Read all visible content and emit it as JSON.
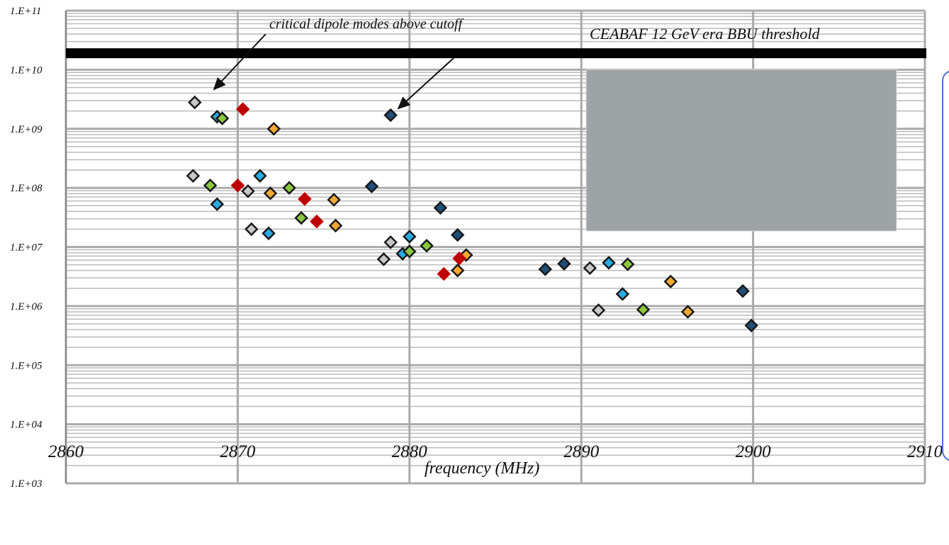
{
  "chart_data": {
    "type": "scatter",
    "xlabel": "frequency (MHz)",
    "annotations": [
      "critical dipole modes above cutoff",
      "CEABAF 12 GeV era BBU threshold"
    ],
    "threshold": 19000000000.0,
    "xlim": [
      2860,
      2910
    ],
    "xticks": [
      2860,
      2870,
      2880,
      2890,
      2900,
      2910
    ],
    "ylim": [
      1000.0,
      100000000000.0
    ],
    "log_y": true,
    "grid": true,
    "yticks": [
      {
        "value": 1000.0,
        "label": "1.E+03"
      },
      {
        "value": 10000.0,
        "label": "1.E+04"
      },
      {
        "value": 100000.0,
        "label": "1.E+05"
      },
      {
        "value": 1000000.0,
        "label": "1.E+06"
      },
      {
        "value": 10000000.0,
        "label": "1.E+07"
      },
      {
        "value": 100000000.0,
        "label": "1.E+08"
      },
      {
        "value": 1000000000.0,
        "label": "1.E+09"
      },
      {
        "value": 10000000000.0,
        "label": "1.E+10"
      },
      {
        "value": 100000000000.0,
        "label": "1.E+11"
      }
    ],
    "series": [
      {
        "color": "#c8c8c8",
        "edgecolor": "#1a1a1a",
        "x": [
          2867.5,
          2867.4,
          2870.6,
          2870.8,
          2878.9,
          2878.5,
          2890.5,
          2891.0
        ],
        "values": [
          2800000000.0,
          160000000.0,
          88000000.0,
          20000000.0,
          12000000.0,
          6200000.0,
          4400000.0,
          850000.0
        ]
      },
      {
        "color": "#29abe2",
        "edgecolor": "#1a1a1a",
        "x": [
          2868.8,
          2868.8,
          2871.3,
          2871.8,
          2880.0,
          2879.6,
          2891.6,
          2892.4
        ],
        "values": [
          1600000000.0,
          53000000.0,
          160000000.0,
          17000000.0,
          15000000.0,
          7700000.0,
          5400000.0,
          1600000.0
        ]
      },
      {
        "color": "#8cc63f",
        "edgecolor": "#1a1a1a",
        "x": [
          2869.1,
          2868.4,
          2873.0,
          2873.7,
          2880.0,
          2881.0,
          2892.7,
          2893.6
        ],
        "values": [
          1500000000.0,
          110000000.0,
          100000000.0,
          31000000.0,
          8400000.0,
          10500000.0,
          5100000.0,
          870000.0
        ]
      },
      {
        "color": "#f7a833",
        "edgecolor": "#1a1a1a",
        "x": [
          2872.1,
          2871.9,
          2875.6,
          2875.7,
          2882.8,
          2883.3,
          2895.2,
          2896.2
        ],
        "values": [
          1000000000.0,
          81000000.0,
          63000000.0,
          23000000.0,
          4000000.0,
          7300000.0,
          2600000.0,
          800000.0
        ]
      },
      {
        "color": "#c00000",
        "edgecolor": "#c00000",
        "x": [
          2870.3,
          2870.0,
          2873.9,
          2874.6,
          2882.0,
          2882.9
        ],
        "values": [
          2150000000.0,
          110000000.0,
          65000000.0,
          27000000.0,
          3500000.0,
          6400000.0
        ]
      },
      {
        "color": "#1f4e79",
        "edgecolor": "#1a1a1a",
        "x": [
          2878.9,
          2877.8,
          2881.8,
          2882.8,
          2887.9,
          2889.0,
          2899.4,
          2899.9
        ],
        "values": [
          1700000000.0,
          106000000.0,
          46000000.0,
          16000000.0,
          4200000.0,
          5200000.0,
          1800000.0,
          470000.0
        ]
      }
    ]
  }
}
